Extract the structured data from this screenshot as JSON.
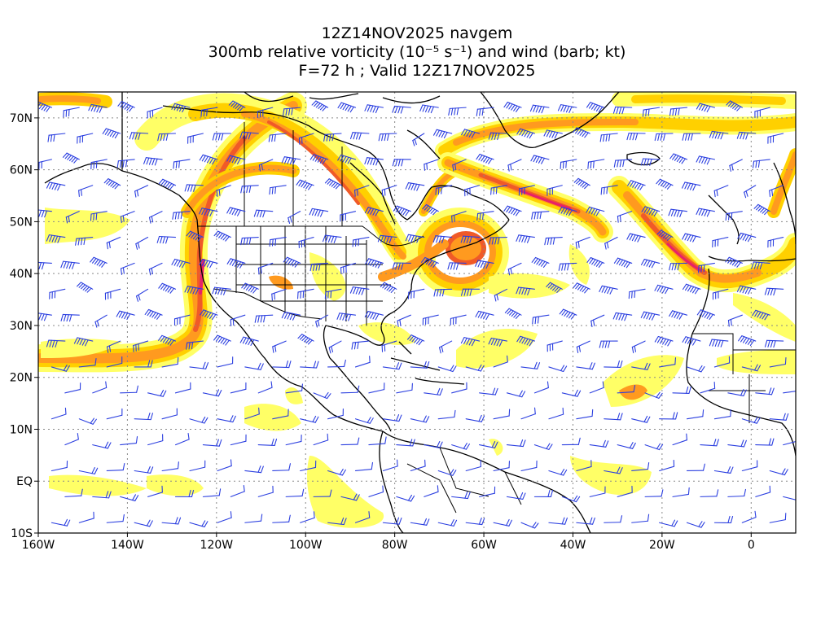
{
  "title": {
    "line1": "12Z14NOV2025 navgem",
    "line2": "300mb relative vorticity (10⁻⁵ s⁻¹) and wind (barb; kt)",
    "line3": "F=72 h ; Valid 12Z17NOV2025"
  },
  "axes": {
    "lon_range": [
      -160,
      10
    ],
    "lat_range": [
      -10,
      75
    ],
    "x_ticks": [
      {
        "value": -160,
        "label": "160W"
      },
      {
        "value": -140,
        "label": "140W"
      },
      {
        "value": -120,
        "label": "120W"
      },
      {
        "value": -100,
        "label": "100W"
      },
      {
        "value": -80,
        "label": "80W"
      },
      {
        "value": -60,
        "label": "60W"
      },
      {
        "value": -40,
        "label": "40W"
      },
      {
        "value": -20,
        "label": "20W"
      },
      {
        "value": 0,
        "label": "0"
      }
    ],
    "y_ticks": [
      {
        "value": 70,
        "label": "70N"
      },
      {
        "value": 60,
        "label": "60N"
      },
      {
        "value": 50,
        "label": "50N"
      },
      {
        "value": 40,
        "label": "40N"
      },
      {
        "value": 30,
        "label": "30N"
      },
      {
        "value": 20,
        "label": "20N"
      },
      {
        "value": 10,
        "label": "10N"
      },
      {
        "value": 0,
        "label": "EQ"
      },
      {
        "value": -10,
        "label": "10S"
      }
    ],
    "grid": "dotted"
  },
  "colors": {
    "barb": "#2b3fe0",
    "coast": "#000000",
    "vort_levels": [
      "#ffff66",
      "#ffd000",
      "#ff9a1f",
      "#f05a28",
      "#e8206a"
    ],
    "land_fill": "#ffffff"
  }
}
